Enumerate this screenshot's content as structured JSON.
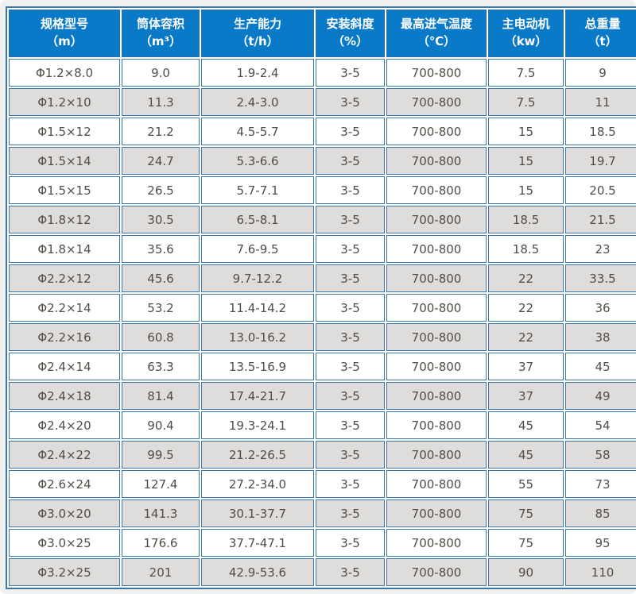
{
  "chart_data": {
    "type": "table",
    "columns": [
      {
        "title": "规格型号",
        "unit": "（m）"
      },
      {
        "title": "筒体容积",
        "unit": "（m³）"
      },
      {
        "title": "生产能力",
        "unit": "（t/h）"
      },
      {
        "title": "安装斜度",
        "unit": "（%）"
      },
      {
        "title": "最高进气温度",
        "unit": "（℃）"
      },
      {
        "title": "主电动机",
        "unit": "（kw）"
      },
      {
        "title": "总重量",
        "unit": "（t）"
      }
    ],
    "rows": [
      [
        "Φ1.2×8.0",
        "9.0",
        "1.9-2.4",
        "3-5",
        "700-800",
        "7.5",
        "9"
      ],
      [
        "Φ1.2×10",
        "11.3",
        "2.4-3.0",
        "3-5",
        "700-800",
        "7.5",
        "11"
      ],
      [
        "Φ1.5×12",
        "21.2",
        "4.5-5.7",
        "3-5",
        "700-800",
        "15",
        "18.5"
      ],
      [
        "Φ1.5×14",
        "24.7",
        "5.3-6.6",
        "3-5",
        "700-800",
        "15",
        "19.7"
      ],
      [
        "Φ1.5×15",
        "26.5",
        "5.7-7.1",
        "3-5",
        "700-800",
        "15",
        "20.5"
      ],
      [
        "Φ1.8×12",
        "30.5",
        "6.5-8.1",
        "3-5",
        "700-800",
        "18.5",
        "21.5"
      ],
      [
        "Φ1.8×14",
        "35.6",
        "7.6-9.5",
        "3-5",
        "700-800",
        "18.5",
        "23"
      ],
      [
        "Φ2.2×12",
        "45.6",
        "9.7-12.2",
        "3-5",
        "700-800",
        "22",
        "33.5"
      ],
      [
        "Φ2.2×14",
        "53.2",
        "11.4-14.2",
        "3-5",
        "700-800",
        "22",
        "36"
      ],
      [
        "Φ2.2×16",
        "60.8",
        "13.0-16.2",
        "3-5",
        "700-800",
        "22",
        "38"
      ],
      [
        "Φ2.4×14",
        "63.3",
        "13.5-16.9",
        "3-5",
        "700-800",
        "37",
        "45"
      ],
      [
        "Φ2.4×18",
        "81.4",
        "17.4-21.7",
        "3-5",
        "700-800",
        "37",
        "49"
      ],
      [
        "Φ2.4×20",
        "90.4",
        "19.3-24.1",
        "3-5",
        "700-800",
        "45",
        "54"
      ],
      [
        "Φ2.4×22",
        "99.5",
        "21.2-26.5",
        "3-5",
        "700-800",
        "45",
        "58"
      ],
      [
        "Φ2.6×24",
        "127.4",
        "27.2-34.0",
        "3-5",
        "700-800",
        "55",
        "73"
      ],
      [
        "Φ3.0×20",
        "141.3",
        "30.1-37.7",
        "3-5",
        "700-800",
        "75",
        "85"
      ],
      [
        "Φ3.0×25",
        "176.6",
        "37.7-47.1",
        "3-5",
        "700-800",
        "75",
        "95"
      ],
      [
        "Φ3.2×25",
        "201",
        "42.9-53.6",
        "3-5",
        "700-800",
        "90",
        "110"
      ]
    ]
  },
  "colors": {
    "header_bg": "#0a79c8",
    "header_text": "#ffffff",
    "header_border": "#2d6da3",
    "border": "#3d76a4",
    "row_bg": "#ffffff",
    "row_alt_bg": "#dedddb",
    "cell_text": "#524c47",
    "page_bg": "#f0f0ee"
  }
}
